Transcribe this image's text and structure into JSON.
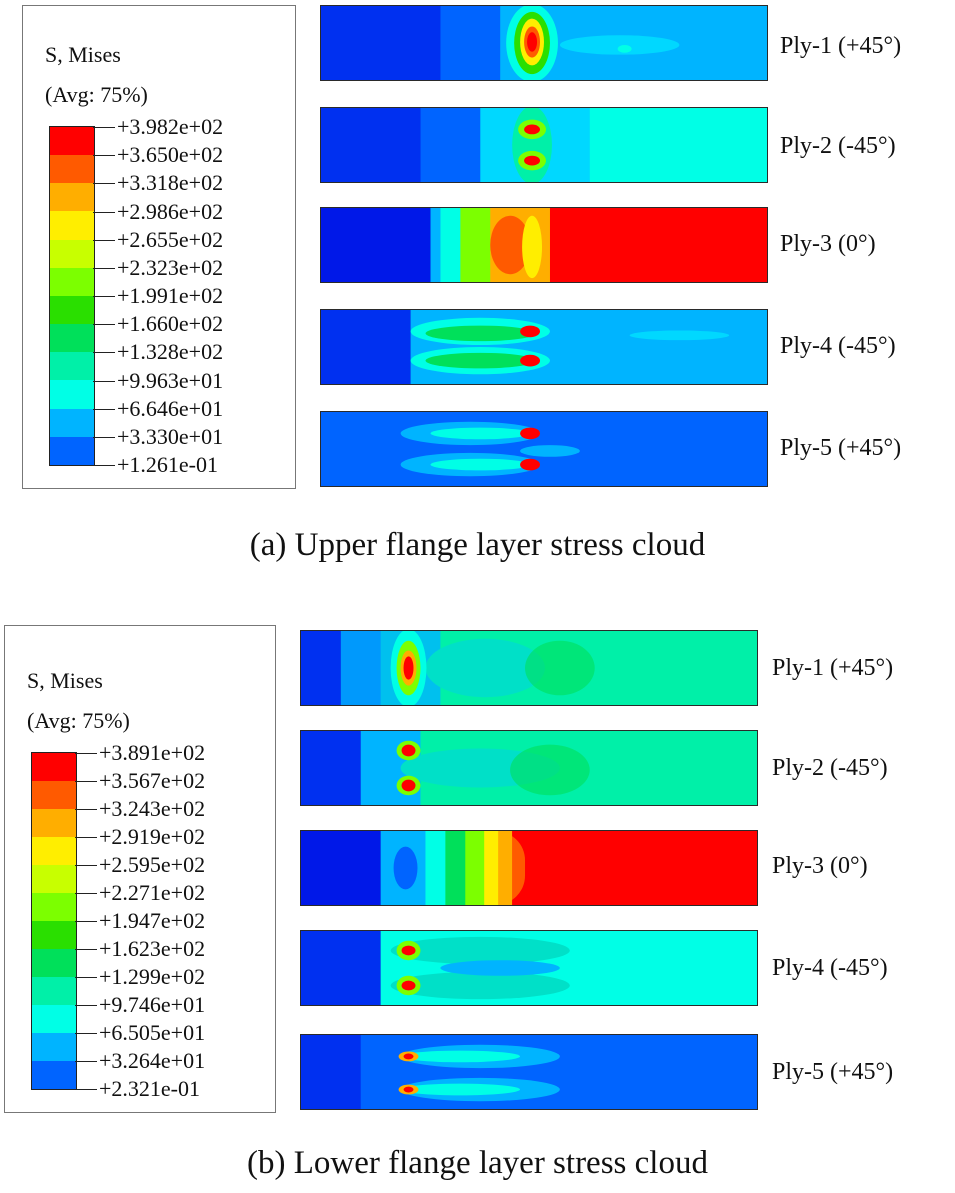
{
  "panels": [
    {
      "id": "a",
      "caption": "(a) Upper flange layer stress cloud",
      "legend": {
        "title_line1": "S, Mises",
        "title_line2": "(Avg: 75%)",
        "values": [
          "+3.982e+02",
          "+3.650e+02",
          "+3.318e+02",
          "+2.986e+02",
          "+2.655e+02",
          "+2.323e+02",
          "+1.991e+02",
          "+1.660e+02",
          "+1.328e+02",
          "+9.963e+01",
          "+6.646e+01",
          "+3.330e+01",
          "+1.261e-01"
        ]
      },
      "plies": [
        "Ply-1 (+45°)",
        "Ply-2 (-45°)",
        "Ply-3 (0°)",
        "Ply-4 (-45°)",
        "Ply-5 (+45°)"
      ]
    },
    {
      "id": "b",
      "caption": "(b) Lower flange layer stress cloud",
      "legend": {
        "title_line1": "S, Mises",
        "title_line2": "(Avg: 75%)",
        "values": [
          "+3.891e+02",
          "+3.567e+02",
          "+3.243e+02",
          "+2.919e+02",
          "+2.595e+02",
          "+2.271e+02",
          "+1.947e+02",
          "+1.623e+02",
          "+1.299e+02",
          "+9.746e+01",
          "+6.505e+01",
          "+3.264e+01",
          "+2.321e-01"
        ]
      },
      "plies": [
        "Ply-1 (+45°)",
        "Ply-2 (-45°)",
        "Ply-3 (0°)",
        "Ply-4 (-45°)",
        "Ply-5 (+45°)"
      ]
    }
  ],
  "colormap": [
    "#ff0000",
    "#ff5a00",
    "#ffae00",
    "#ffee00",
    "#c8ff00",
    "#7cff00",
    "#2adf00",
    "#00e05a",
    "#00f0a8",
    "#00ffe6",
    "#00b4ff",
    "#0064ff",
    "#0018e8"
  ]
}
